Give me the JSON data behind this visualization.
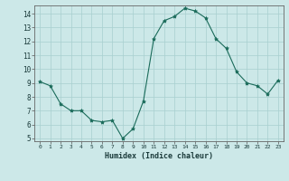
{
  "x": [
    0,
    1,
    2,
    3,
    4,
    5,
    6,
    7,
    8,
    9,
    10,
    11,
    12,
    13,
    14,
    15,
    16,
    17,
    18,
    19,
    20,
    21,
    22,
    23
  ],
  "y": [
    9.1,
    8.8,
    7.5,
    7.0,
    7.0,
    6.3,
    6.2,
    6.3,
    5.0,
    5.7,
    7.7,
    12.2,
    13.5,
    13.8,
    14.4,
    14.2,
    13.7,
    12.2,
    11.5,
    9.8,
    9.0,
    8.8,
    8.2,
    9.2
  ],
  "xlabel": "Humidex (Indice chaleur)",
  "ylim": [
    4.8,
    14.6
  ],
  "xlim": [
    -0.5,
    23.5
  ],
  "yticks": [
    5,
    6,
    7,
    8,
    9,
    10,
    11,
    12,
    13,
    14
  ],
  "xticks": [
    0,
    1,
    2,
    3,
    4,
    5,
    6,
    7,
    8,
    9,
    10,
    11,
    12,
    13,
    14,
    15,
    16,
    17,
    18,
    19,
    20,
    21,
    22,
    23
  ],
  "line_color": "#1a6b5a",
  "marker_color": "#1a6b5a",
  "bg_color": "#cce8e8",
  "grid_color": "#a8cfcf",
  "axis_bg": "#cce8e8"
}
